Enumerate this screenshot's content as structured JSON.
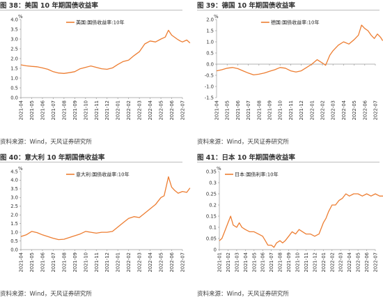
{
  "colors": {
    "line": "#ED7D31",
    "axis": "#9a9a9a",
    "title": "#333333"
  },
  "panels": [
    {
      "title": "图 38：美国 10 年期国债收益率",
      "source": "资料来源：Wind，天风证券研究所"
    },
    {
      "title": "图 39：德国 10 年期国债收益率",
      "source": "资料来源：Wind，天风证券研究所"
    },
    {
      "title": "图 40：意大利 10 年期国债收益率",
      "source": "资料来源：Wind，天风证券研究所"
    },
    {
      "title": "图 41：日本 10 年期国债收益率",
      "source": "资料来源：Wind，天风证券研究所"
    }
  ],
  "chart_data": [
    {
      "type": "line",
      "unit": "%",
      "legend": "美国:国债收益率:10年",
      "legend_position": "top-center",
      "ylim": [
        0,
        4.0
      ],
      "yticks": [
        "0.0",
        "0.5",
        "1.0",
        "1.5",
        "2.0",
        "2.5",
        "3.0",
        "3.5",
        "4.0"
      ],
      "ytick_values": [
        0,
        0.5,
        1.0,
        1.5,
        2.0,
        2.5,
        3.0,
        3.5,
        4.0
      ],
      "xticks": [
        "2021-04",
        "2021-05",
        "2021-06",
        "2021-07",
        "2021-08",
        "2021-09",
        "2021-10",
        "2021-11",
        "2021-12",
        "2022-01",
        "2022-02",
        "2022-03",
        "2022-04",
        "2022-05",
        "2022-06",
        "2022-07"
      ],
      "series": [
        {
          "name": "美国:国债收益率:10年",
          "points": [
            [
              0,
              1.68
            ],
            [
              0.5,
              1.63
            ],
            [
              1.0,
              1.6
            ],
            [
              1.5,
              1.58
            ],
            [
              2.0,
              1.52
            ],
            [
              2.5,
              1.45
            ],
            [
              3.0,
              1.33
            ],
            [
              3.5,
              1.26
            ],
            [
              4.0,
              1.24
            ],
            [
              4.5,
              1.28
            ],
            [
              5.0,
              1.33
            ],
            [
              5.5,
              1.48
            ],
            [
              6.0,
              1.55
            ],
            [
              6.5,
              1.62
            ],
            [
              7.0,
              1.55
            ],
            [
              7.5,
              1.48
            ],
            [
              8.0,
              1.45
            ],
            [
              8.5,
              1.52
            ],
            [
              9.0,
              1.7
            ],
            [
              9.5,
              1.85
            ],
            [
              10.0,
              1.92
            ],
            [
              10.5,
              2.15
            ],
            [
              11.0,
              2.35
            ],
            [
              11.5,
              2.75
            ],
            [
              12.0,
              2.9
            ],
            [
              12.5,
              2.85
            ],
            [
              13.0,
              3.0
            ],
            [
              13.4,
              3.1
            ],
            [
              13.7,
              3.45
            ],
            [
              14.0,
              3.2
            ],
            [
              14.5,
              3.0
            ],
            [
              14.8,
              2.9
            ],
            [
              15.0,
              2.85
            ],
            [
              15.4,
              2.95
            ],
            [
              15.7,
              2.8
            ]
          ]
        }
      ]
    },
    {
      "type": "line",
      "unit": "%",
      "legend": "德国:国债收益率:10年",
      "legend_position": "top-center",
      "ylim": [
        -1.5,
        2.0
      ],
      "yticks": [
        "-1.5",
        "-1.0",
        "-0.5",
        "0.0",
        "0.5",
        "1.0",
        "1.5",
        "2.0"
      ],
      "ytick_values": [
        -1.5,
        -1.0,
        -0.5,
        0,
        0.5,
        1.0,
        1.5,
        2.0
      ],
      "xticks": [
        "2021-04",
        "2021-05",
        "2021-06",
        "2021-07",
        "2021-08",
        "2021-09",
        "2021-10",
        "2021-11",
        "2021-12",
        "2022-01",
        "2022-02",
        "2022-03",
        "2022-04",
        "2022-05",
        "2022-06",
        "2022-07"
      ],
      "series": [
        {
          "name": "德国:国债收益率:10年",
          "points": [
            [
              0,
              -0.3
            ],
            [
              0.5,
              -0.25
            ],
            [
              1.0,
              -0.18
            ],
            [
              1.5,
              -0.15
            ],
            [
              2.0,
              -0.2
            ],
            [
              2.5,
              -0.3
            ],
            [
              3.0,
              -0.4
            ],
            [
              3.5,
              -0.48
            ],
            [
              4.0,
              -0.45
            ],
            [
              4.5,
              -0.4
            ],
            [
              5.0,
              -0.32
            ],
            [
              5.5,
              -0.25
            ],
            [
              6.0,
              -0.15
            ],
            [
              6.5,
              -0.18
            ],
            [
              7.0,
              -0.3
            ],
            [
              7.5,
              -0.35
            ],
            [
              8.0,
              -0.3
            ],
            [
              8.5,
              -0.15
            ],
            [
              9.0,
              0.0
            ],
            [
              9.5,
              0.2
            ],
            [
              10.0,
              0.05
            ],
            [
              10.3,
              -0.05
            ],
            [
              10.7,
              0.4
            ],
            [
              11.0,
              0.6
            ],
            [
              11.5,
              0.85
            ],
            [
              12.0,
              1.0
            ],
            [
              12.5,
              0.9
            ],
            [
              13.0,
              1.1
            ],
            [
              13.4,
              1.3
            ],
            [
              13.7,
              1.75
            ],
            [
              14.0,
              1.6
            ],
            [
              14.3,
              1.5
            ],
            [
              14.6,
              1.3
            ],
            [
              14.9,
              1.15
            ],
            [
              15.2,
              1.35
            ],
            [
              15.5,
              1.2
            ],
            [
              15.7,
              1.05
            ]
          ]
        }
      ]
    },
    {
      "type": "line",
      "unit": "%",
      "legend": "意大利:国债收益率:10年",
      "legend_position": "top-center",
      "ylim": [
        0,
        4.5
      ],
      "yticks": [
        "0.0",
        "0.5",
        "1.0",
        "1.5",
        "2.0",
        "2.5",
        "3.0",
        "3.5",
        "4.0",
        "4.5"
      ],
      "ytick_values": [
        0,
        0.5,
        1.0,
        1.5,
        2.0,
        2.5,
        3.0,
        3.5,
        4.0,
        4.5
      ],
      "xticks": [
        "2021-04",
        "2021-05",
        "2021-06",
        "2021-07",
        "2021-08",
        "2021-09",
        "2021-10",
        "2021-11",
        "2021-12",
        "2022-01",
        "2022-02",
        "2022-03",
        "2022-04",
        "2022-05",
        "2022-06",
        "2022-07"
      ],
      "series": [
        {
          "name": "意大利:国债收益率:10年",
          "points": [
            [
              0,
              0.75
            ],
            [
              0.5,
              0.85
            ],
            [
              1.0,
              1.05
            ],
            [
              1.5,
              0.98
            ],
            [
              2.0,
              0.85
            ],
            [
              2.5,
              0.75
            ],
            [
              3.0,
              0.65
            ],
            [
              3.5,
              0.58
            ],
            [
              4.0,
              0.6
            ],
            [
              4.5,
              0.7
            ],
            [
              5.0,
              0.8
            ],
            [
              5.5,
              0.9
            ],
            [
              6.0,
              1.05
            ],
            [
              6.5,
              1.0
            ],
            [
              7.0,
              0.95
            ],
            [
              7.5,
              1.0
            ],
            [
              8.0,
              1.0
            ],
            [
              8.5,
              1.05
            ],
            [
              9.0,
              1.3
            ],
            [
              9.5,
              1.55
            ],
            [
              10.0,
              1.8
            ],
            [
              10.5,
              1.9
            ],
            [
              11.0,
              1.85
            ],
            [
              11.5,
              2.1
            ],
            [
              12.0,
              2.35
            ],
            [
              12.5,
              2.6
            ],
            [
              13.0,
              3.0
            ],
            [
              13.3,
              3.1
            ],
            [
              13.7,
              4.2
            ],
            [
              14.0,
              3.6
            ],
            [
              14.3,
              3.4
            ],
            [
              14.6,
              3.25
            ],
            [
              15.0,
              3.35
            ],
            [
              15.4,
              3.3
            ],
            [
              15.7,
              3.55
            ]
          ]
        }
      ]
    },
    {
      "type": "line",
      "unit": "%",
      "legend": "日本:国债利率:10年",
      "legend_position": "top-left",
      "ylim": [
        0,
        0.35
      ],
      "yticks": [
        "0",
        "0.05",
        "0.1",
        "0.15",
        "0.2",
        "0.25",
        "0.3",
        "0.35"
      ],
      "ytick_values": [
        0,
        0.05,
        0.1,
        0.15,
        0.2,
        0.25,
        0.3,
        0.35
      ],
      "xticks": [
        "2021-01",
        "2021-02",
        "2021-03",
        "2021-04",
        "2021-05",
        "2021-06",
        "2021-07",
        "2021-08",
        "2021-09",
        "2021-10",
        "2021-11",
        "2021-12",
        "2022-01",
        "2022-02",
        "2022-03",
        "2022-04",
        "2022-05",
        "2022-06",
        "2022-07"
      ],
      "series": [
        {
          "name": "日本:国债利率:10年",
          "points": [
            [
              0,
              0.04
            ],
            [
              0.3,
              0.05
            ],
            [
              0.6,
              0.08
            ],
            [
              1.0,
              0.12
            ],
            [
              1.3,
              0.15
            ],
            [
              1.6,
              0.11
            ],
            [
              2.0,
              0.1
            ],
            [
              2.3,
              0.12
            ],
            [
              2.6,
              0.1
            ],
            [
              3.0,
              0.09
            ],
            [
              3.5,
              0.08
            ],
            [
              4.0,
              0.08
            ],
            [
              4.5,
              0.07
            ],
            [
              5.0,
              0.06
            ],
            [
              5.3,
              0.04
            ],
            [
              5.6,
              0.02
            ],
            [
              6.0,
              0.02
            ],
            [
              6.3,
              0.01
            ],
            [
              6.6,
              0.03
            ],
            [
              7.0,
              0.04
            ],
            [
              7.3,
              0.03
            ],
            [
              7.6,
              0.04
            ],
            [
              8.0,
              0.06
            ],
            [
              8.4,
              0.08
            ],
            [
              8.8,
              0.07
            ],
            [
              9.2,
              0.09
            ],
            [
              9.6,
              0.08
            ],
            [
              10.0,
              0.07
            ],
            [
              10.5,
              0.07
            ],
            [
              11.0,
              0.06
            ],
            [
              11.5,
              0.07
            ],
            [
              12.0,
              0.12
            ],
            [
              12.3,
              0.14
            ],
            [
              12.6,
              0.17
            ],
            [
              13.0,
              0.2
            ],
            [
              13.4,
              0.2
            ],
            [
              13.8,
              0.22
            ],
            [
              14.2,
              0.23
            ],
            [
              14.6,
              0.25
            ],
            [
              15.0,
              0.24
            ],
            [
              15.5,
              0.25
            ],
            [
              16.0,
              0.25
            ],
            [
              16.5,
              0.24
            ],
            [
              17.0,
              0.25
            ],
            [
              17.5,
              0.24
            ],
            [
              18.0,
              0.25
            ],
            [
              18.5,
              0.24
            ],
            [
              18.9,
              0.24
            ]
          ]
        }
      ]
    }
  ]
}
